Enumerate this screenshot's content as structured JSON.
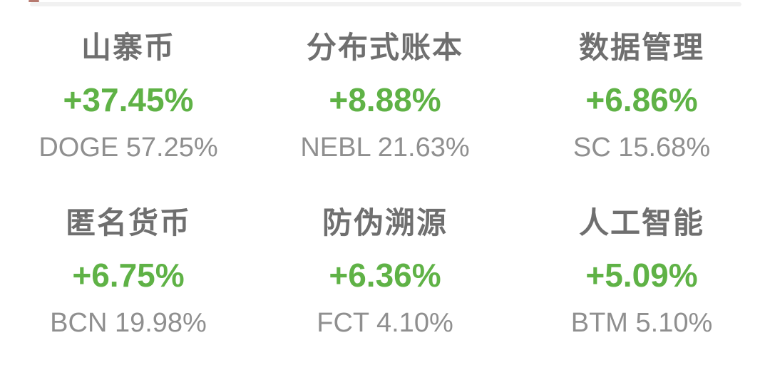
{
  "colors": {
    "positive": "#5fb246",
    "title": "#6f6f6f",
    "ticker": "#8f8f8f",
    "divider": "#f1f1f1",
    "red_mark": "#a4574b",
    "background": "#ffffff"
  },
  "sectors": [
    {
      "name": "山寨币",
      "change": "+37.45%",
      "leader": "DOGE 57.25%"
    },
    {
      "name": "分布式账本",
      "change": "+8.88%",
      "leader": "NEBL 21.63%"
    },
    {
      "name": "数据管理",
      "change": "+6.86%",
      "leader": "SC 15.68%"
    },
    {
      "name": "匿名货币",
      "change": "+6.75%",
      "leader": "BCN 19.98%"
    },
    {
      "name": "防伪溯源",
      "change": "+6.36%",
      "leader": "FCT 4.10%"
    },
    {
      "name": "人工智能",
      "change": "+5.09%",
      "leader": "BTM 5.10%"
    }
  ]
}
